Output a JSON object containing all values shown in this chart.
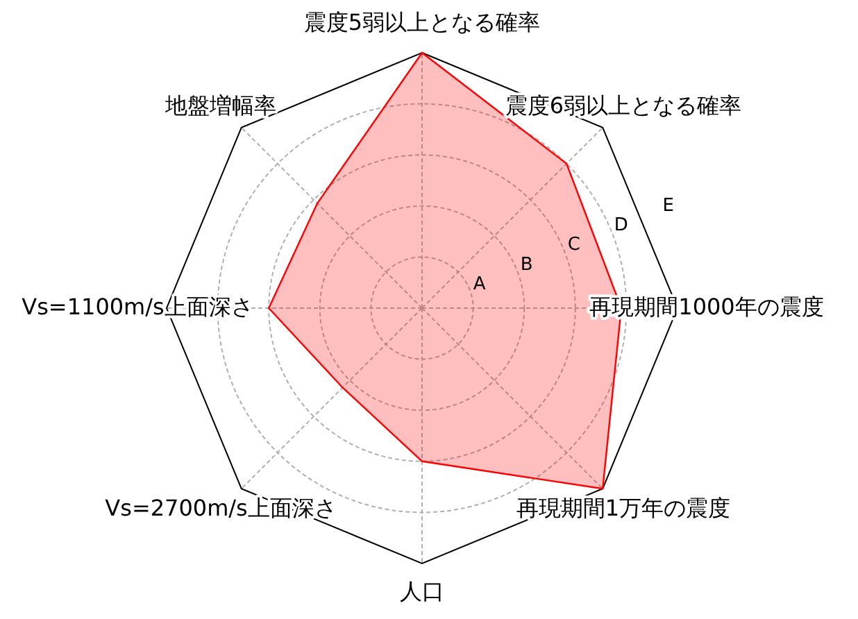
{
  "chart_data": {
    "type": "radar",
    "categories": [
      "震度5弱以上となる確率",
      "震度6弱以上となる確率",
      "再現期間1000年の震度",
      "再現期間1万年の震度",
      "人口",
      "Vs=2700m/s上面深さ",
      "Vs=1100m/s上面深さ",
      "地盤増幅率"
    ],
    "series": [
      {
        "color": "#ff0000",
        "values": [
          5,
          4.0,
          3.9,
          5,
          3.0,
          2.2,
          3.0,
          2.9
        ]
      }
    ],
    "ylim": [
      0,
      5
    ],
    "yticks": [
      {
        "value": 1,
        "label": "A"
      },
      {
        "value": 2,
        "label": "B"
      },
      {
        "value": 3,
        "label": "C"
      },
      {
        "value": 4,
        "label": "D"
      },
      {
        "value": 5,
        "label": "E"
      }
    ],
    "grid": true
  }
}
